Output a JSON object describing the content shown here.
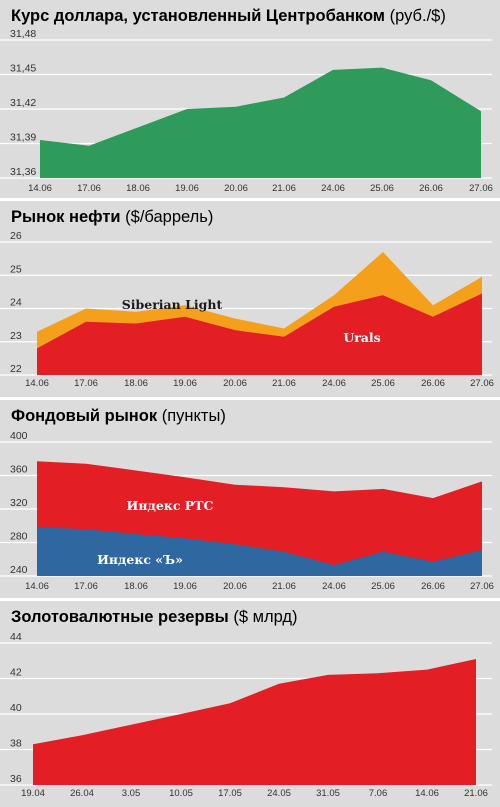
{
  "chart_data": [
    {
      "type": "area",
      "title": "Курс доллара, установленный Центробанком",
      "unit": "(руб./$)",
      "categories": [
        "14.06",
        "17.06",
        "18.06",
        "19.06",
        "20.06",
        "21.06",
        "24.06",
        "25.06",
        "26.06",
        "27.06"
      ],
      "yticks": [
        "31,48",
        "31,45",
        "31,42",
        "31,39",
        "31,36"
      ],
      "ylim": [
        31.36,
        31.48
      ],
      "series": [
        {
          "name": "",
          "color": "#2e9b5a",
          "values": [
            31.393,
            31.388,
            31.404,
            31.42,
            31.422,
            31.43,
            31.454,
            31.456,
            31.445,
            31.418
          ]
        }
      ]
    },
    {
      "type": "area",
      "title": "Рынок нефти",
      "unit": "($/баррель)",
      "categories": [
        "14.06",
        "17.06",
        "18.06",
        "19.06",
        "20.06",
        "21.06",
        "24.06",
        "25.06",
        "26.06",
        "27.06"
      ],
      "yticks": [
        "26",
        "25",
        "24",
        "23",
        "22"
      ],
      "ylim": [
        22,
        26
      ],
      "series": [
        {
          "name": "Siberian Light",
          "color": "#f5a01a",
          "values": [
            23.3,
            24.0,
            23.9,
            24.1,
            23.7,
            23.4,
            24.4,
            25.7,
            24.1,
            24.95
          ]
        },
        {
          "name": "Urals",
          "color": "#e31e24",
          "values": [
            22.8,
            23.6,
            23.55,
            23.75,
            23.35,
            23.15,
            24.05,
            24.4,
            23.75,
            24.45
          ]
        }
      ]
    },
    {
      "type": "area",
      "title": "Фондовый рынок",
      "unit": "(пункты)",
      "categories": [
        "14.06",
        "17.06",
        "18.06",
        "19.06",
        "20.06",
        "21.06",
        "24.06",
        "25.06",
        "26.06",
        "27.06"
      ],
      "yticks": [
        "400",
        "360",
        "320",
        "280",
        "240"
      ],
      "ylim": [
        240,
        400
      ],
      "series": [
        {
          "name": "Индекс РТС",
          "color": "#e31e24",
          "values": [
            377,
            374,
            366,
            358,
            349,
            346,
            341,
            344,
            333,
            353
          ]
        },
        {
          "name": "Индекс «Ъ»",
          "color": "#2f67a0",
          "values": [
            298,
            296,
            290,
            285,
            278,
            269,
            253,
            269,
            257,
            271
          ]
        }
      ]
    },
    {
      "type": "area",
      "title": "Золотовалютные резервы",
      "unit": "($ млрд)",
      "categories": [
        "19.04",
        "26.04",
        "3.05",
        "10.05",
        "17.05",
        "24.05",
        "31.05",
        "7.06",
        "14.06",
        "21.06"
      ],
      "yticks": [
        "44",
        "42",
        "40",
        "38",
        "36"
      ],
      "ylim": [
        36,
        44
      ],
      "series": [
        {
          "name": "",
          "color": "#e31e24",
          "values": [
            38.3,
            38.8,
            39.4,
            40.0,
            40.6,
            41.7,
            42.2,
            42.3,
            42.5,
            43.1
          ]
        }
      ]
    }
  ]
}
